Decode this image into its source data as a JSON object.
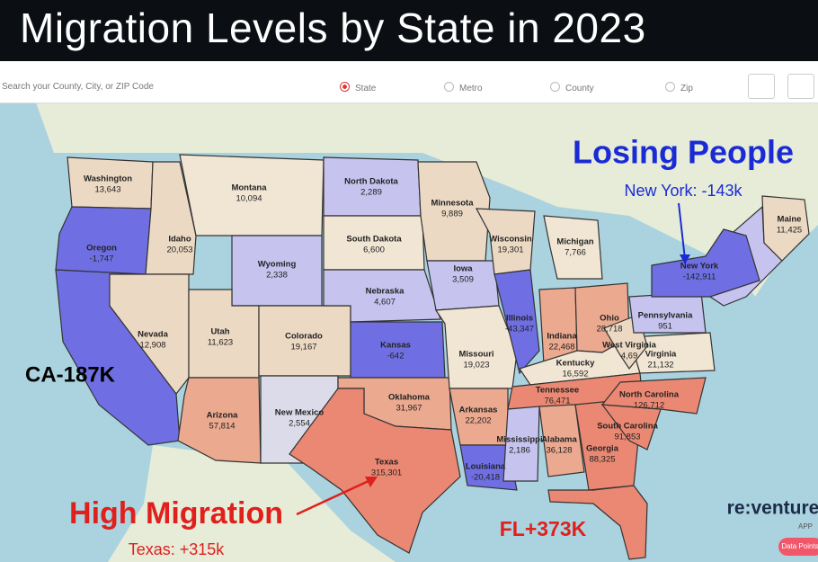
{
  "header": {
    "title": "Migration Levels by State in 2023"
  },
  "search": {
    "placeholder": "Search your County, City, or ZIP Code",
    "toggles": [
      "State",
      "Metro",
      "County",
      "Zip"
    ]
  },
  "annotations": {
    "losing": "Losing People",
    "new_york": "New York: -143k",
    "california": "CA-187K",
    "high": "High Migration",
    "texas": "Texas: +315k",
    "florida": "FL+373K"
  },
  "brand": {
    "name": "re:venture",
    "sub": "APP",
    "button": "Data Points"
  },
  "states": [
    {
      "name": "Washington",
      "value": "13,643"
    },
    {
      "name": "Oregon",
      "value": "-1,747"
    },
    {
      "name": "Idaho",
      "value": "20,053"
    },
    {
      "name": "Montana",
      "value": "10,094"
    },
    {
      "name": "Wyoming",
      "value": "2,338"
    },
    {
      "name": "Nevada",
      "value": "12,908"
    },
    {
      "name": "Utah",
      "value": "11,623"
    },
    {
      "name": "Colorado",
      "value": "19,167"
    },
    {
      "name": "Arizona",
      "value": "57,814"
    },
    {
      "name": "New Mexico",
      "value": "2,554"
    },
    {
      "name": "North Dakota",
      "value": "2,289"
    },
    {
      "name": "South Dakota",
      "value": "6,600"
    },
    {
      "name": "Nebraska",
      "value": "4,607"
    },
    {
      "name": "Kansas",
      "value": "-642"
    },
    {
      "name": "Oklahoma",
      "value": "31,967"
    },
    {
      "name": "Texas",
      "value": "315,301"
    },
    {
      "name": "Minnesota",
      "value": "9,889"
    },
    {
      "name": "Iowa",
      "value": "3,509"
    },
    {
      "name": "Missouri",
      "value": "19,023"
    },
    {
      "name": "Arkansas",
      "value": "22,202"
    },
    {
      "name": "Louisiana",
      "value": "-20,418"
    },
    {
      "name": "Wisconsin",
      "value": "19,301"
    },
    {
      "name": "Illinois",
      "value": "-43,347"
    },
    {
      "name": "Michigan",
      "value": "7,766"
    },
    {
      "name": "Indiana",
      "value": "22,468"
    },
    {
      "name": "Ohio",
      "value": "28,718"
    },
    {
      "name": "Kentucky",
      "value": "16,592"
    },
    {
      "name": "Tennessee",
      "value": "76,471"
    },
    {
      "name": "Mississippi",
      "value": "2,186"
    },
    {
      "name": "Alabama",
      "value": "36,128"
    },
    {
      "name": "Georgia",
      "value": "88,325"
    },
    {
      "name": "South Carolina",
      "value": "91,853"
    },
    {
      "name": "North Carolina",
      "value": "126,712"
    },
    {
      "name": "Virginia",
      "value": "21,132"
    },
    {
      "name": "West Virginia",
      "value": "4,69"
    },
    {
      "name": "Pennsylvania",
      "value": "951"
    },
    {
      "name": "New York",
      "value": "-142,911"
    },
    {
      "name": "Maine",
      "value": "11,425"
    }
  ]
}
